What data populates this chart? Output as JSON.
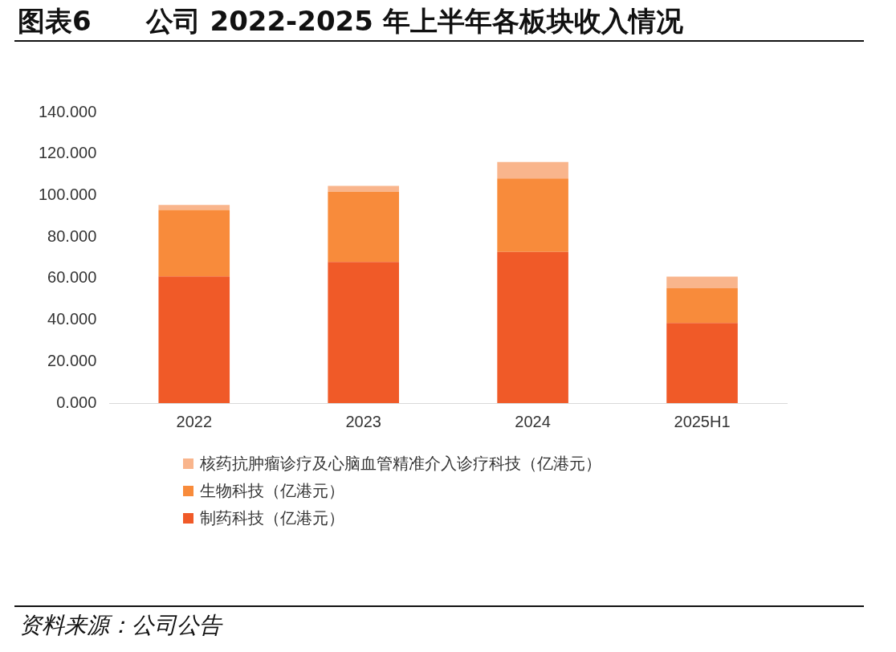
{
  "chart_data": {
    "type": "bar",
    "title": "图表6　　公司 2022-2025 年上半年各板块收入情况",
    "categories": [
      "2022",
      "2023",
      "2024",
      "2025H1"
    ],
    "stacked": true,
    "series": [
      {
        "name": "制药科技（亿港元）",
        "color": "#f05a28",
        "values": [
          61,
          68,
          72.8,
          38.6
        ]
      },
      {
        "name": "生物科技（亿港元）",
        "color": "#f88b3b",
        "values": [
          32,
          33.8,
          35.4,
          16.7
        ]
      },
      {
        "name": "核药抗肿瘤诊疗及心脑血管精准介入诊疗科技（亿港元）",
        "color": "#f9b58c",
        "values": [
          2.4,
          2.8,
          7.9,
          5.6
        ]
      }
    ],
    "ylim": [
      0,
      140
    ],
    "yticks": [
      {
        "value": 0,
        "label": "0.000"
      },
      {
        "value": 20,
        "label": "20.000"
      },
      {
        "value": 40,
        "label": "40.000"
      },
      {
        "value": 60,
        "label": "60.000"
      },
      {
        "value": 80,
        "label": "80.000"
      },
      {
        "value": 100,
        "label": "100.000"
      },
      {
        "value": 120,
        "label": "120.000"
      },
      {
        "value": 140,
        "label": "140.000"
      }
    ],
    "grid": false,
    "legend": "bottom",
    "annotations": [
      "资料来源：公司公告"
    ]
  }
}
